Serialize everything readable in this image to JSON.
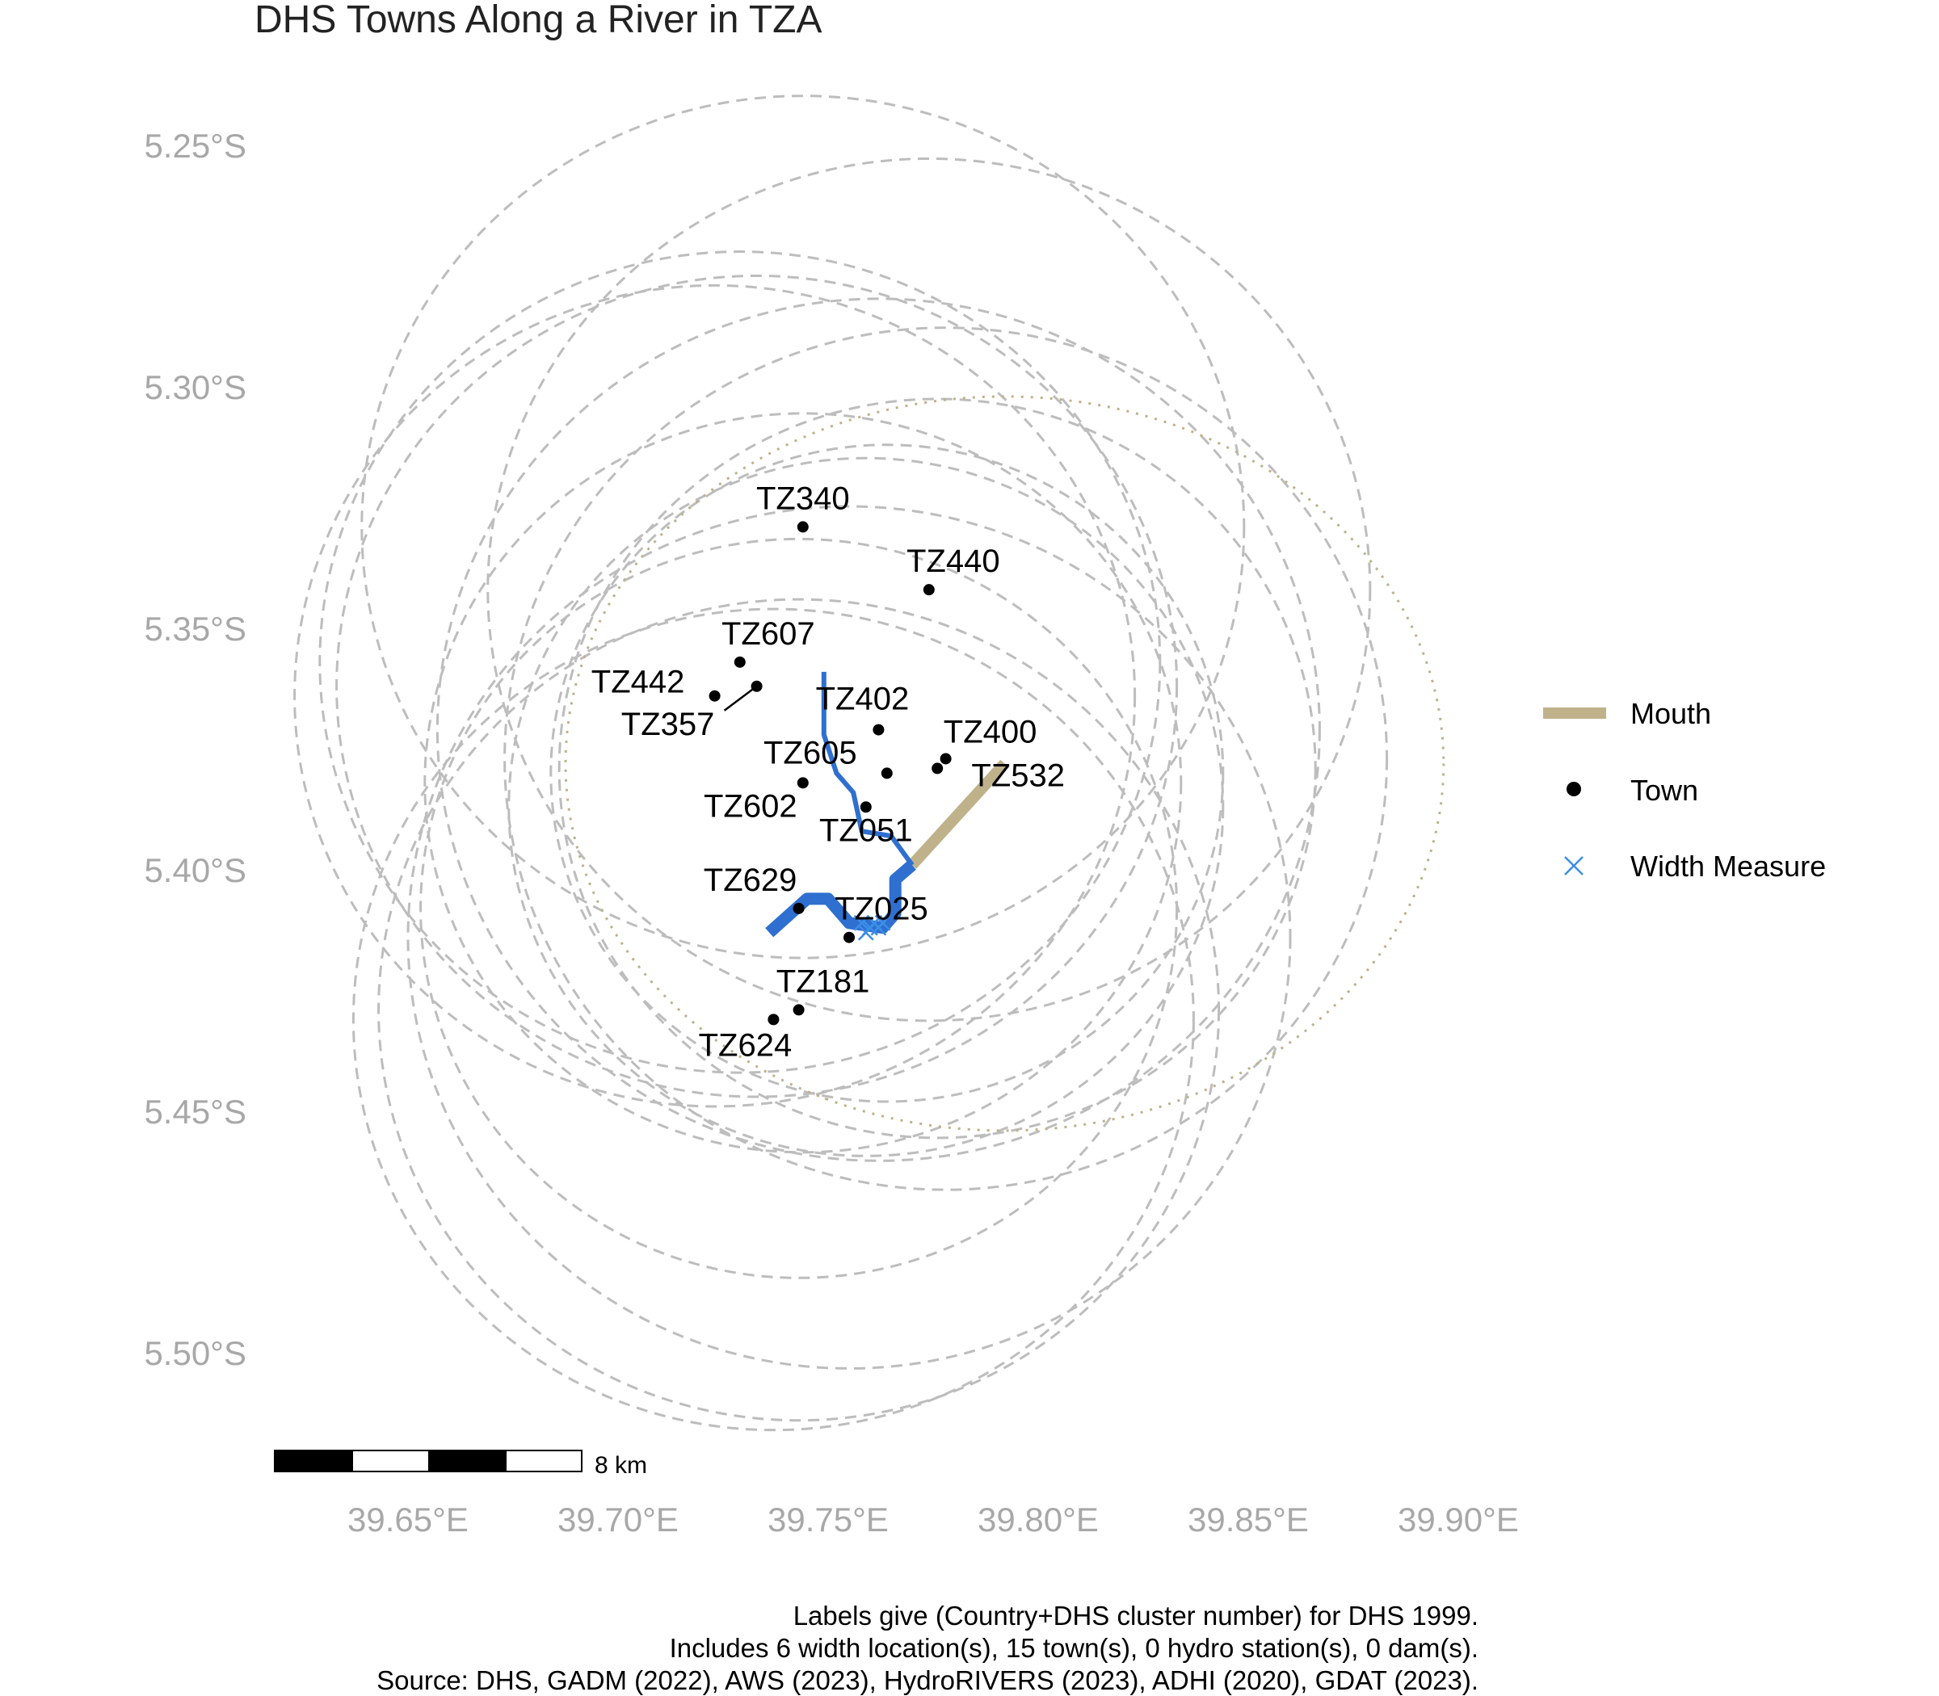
{
  "title": "DHS Towns Along a River in TZA",
  "chart_data": {
    "type": "map",
    "x_ticks": [
      "39.65°E",
      "39.70°E",
      "39.75°E",
      "39.80°E",
      "39.85°E",
      "39.90°E"
    ],
    "y_ticks": [
      "5.25°S",
      "5.30°S",
      "5.35°S",
      "5.40°S",
      "5.45°S",
      "5.50°S"
    ],
    "x_tick_values": [
      39.65,
      39.7,
      39.75,
      39.8,
      39.85,
      39.9
    ],
    "y_tick_values": [
      -5.25,
      -5.3,
      -5.35,
      -5.4,
      -5.45,
      -5.5
    ],
    "towns": [
      {
        "label": "TZ340",
        "lon": 39.744,
        "lat": -5.329
      },
      {
        "label": "TZ440",
        "lon": 39.774,
        "lat": -5.342
      },
      {
        "label": "TZ607",
        "lon": 39.729,
        "lat": -5.357
      },
      {
        "label": "TZ442",
        "lon": 39.723,
        "lat": -5.364
      },
      {
        "label": "TZ357",
        "lon": 39.733,
        "lat": -5.362
      },
      {
        "label": "TZ402",
        "lon": 39.762,
        "lat": -5.371
      },
      {
        "label": "TZ400",
        "lon": 39.778,
        "lat": -5.377
      },
      {
        "label": "TZ605",
        "lon": 39.764,
        "lat": -5.38
      },
      {
        "label": "TZ532",
        "lon": 39.776,
        "lat": -5.379
      },
      {
        "label": "TZ602",
        "lon": 39.744,
        "lat": -5.382
      },
      {
        "label": "TZ051",
        "lon": 39.759,
        "lat": -5.387
      },
      {
        "label": "TZ629",
        "lon": 39.743,
        "lat": -5.408
      },
      {
        "label": "TZ025",
        "lon": 39.755,
        "lat": -5.414
      },
      {
        "label": "TZ181",
        "lon": 39.743,
        "lat": -5.429
      },
      {
        "label": "TZ624",
        "lon": 39.737,
        "lat": -5.431
      }
    ],
    "river_main": [
      [
        39.749,
        -5.359
      ],
      [
        39.749,
        -5.372
      ],
      [
        39.752,
        -5.38
      ],
      [
        39.756,
        -5.384
      ],
      [
        39.758,
        -5.392
      ],
      [
        39.765,
        -5.393
      ],
      [
        39.77,
        -5.399
      ]
    ],
    "river_lower": [
      [
        39.77,
        -5.399
      ],
      [
        39.766,
        -5.402
      ],
      [
        39.766,
        -5.409
      ],
      [
        39.763,
        -5.412
      ],
      [
        39.755,
        -5.411
      ],
      [
        39.75,
        -5.406
      ],
      [
        39.745,
        -5.406
      ],
      [
        39.736,
        -5.413
      ]
    ],
    "mouth": [
      [
        39.77,
        -5.399
      ],
      [
        39.792,
        -5.378
      ]
    ],
    "width_measures": [
      [
        39.758,
        -5.411
      ],
      [
        39.76,
        -5.412
      ],
      [
        39.762,
        -5.412
      ],
      [
        39.759,
        -5.413
      ],
      [
        39.761,
        -5.411
      ],
      [
        39.763,
        -5.411
      ]
    ],
    "buffer_circles": [
      {
        "lon": 39.744,
        "lat": -5.329,
        "r": 0.105
      },
      {
        "lon": 39.774,
        "lat": -5.342,
        "r": 0.105
      },
      {
        "lon": 39.729,
        "lat": -5.357,
        "r": 0.1
      },
      {
        "lon": 39.723,
        "lat": -5.364,
        "r": 0.1
      },
      {
        "lon": 39.733,
        "lat": -5.362,
        "r": 0.1
      },
      {
        "lon": 39.762,
        "lat": -5.371,
        "r": 0.105
      },
      {
        "lon": 39.778,
        "lat": -5.377,
        "r": 0.105
      },
      {
        "lon": 39.764,
        "lat": -5.38,
        "r": 0.08
      },
      {
        "lon": 39.776,
        "lat": -5.379,
        "r": 0.09
      },
      {
        "lon": 39.744,
        "lat": -5.382,
        "r": 0.09
      },
      {
        "lon": 39.759,
        "lat": -5.387,
        "r": 0.085
      },
      {
        "lon": 39.743,
        "lat": -5.408,
        "r": 0.09
      },
      {
        "lon": 39.755,
        "lat": -5.414,
        "r": 0.105
      },
      {
        "lon": 39.743,
        "lat": -5.429,
        "r": 0.1
      },
      {
        "lon": 39.737,
        "lat": -5.431,
        "r": 0.1
      }
    ],
    "mouth_circle": {
      "lon": 39.792,
      "lat": -5.378,
      "r": 0.095
    },
    "legend": [
      {
        "label": "Mouth",
        "symbol": "line",
        "color": "#bfb28a"
      },
      {
        "label": "Town",
        "symbol": "dot",
        "color": "#000000"
      },
      {
        "label": "Width Measure",
        "symbol": "x",
        "color": "#3a8ee6"
      }
    ],
    "colors": {
      "river": "#2e6fd0",
      "mouth": "#bfb28a",
      "buffer": "#bdbdbd",
      "town": "#000000",
      "width": "#3a8ee6"
    }
  },
  "scale_bar": {
    "label": "8 km"
  },
  "caption": [
    "Labels give (Country+DHS cluster number) for DHS 1999.",
    "Includes 6 width location(s), 15 town(s), 0 hydro station(s), 0 dam(s).",
    "Source: DHS, GADM (2022), AWS (2023), HydroRIVERS (2023), ADHI (2020), GDAT (2023)."
  ]
}
